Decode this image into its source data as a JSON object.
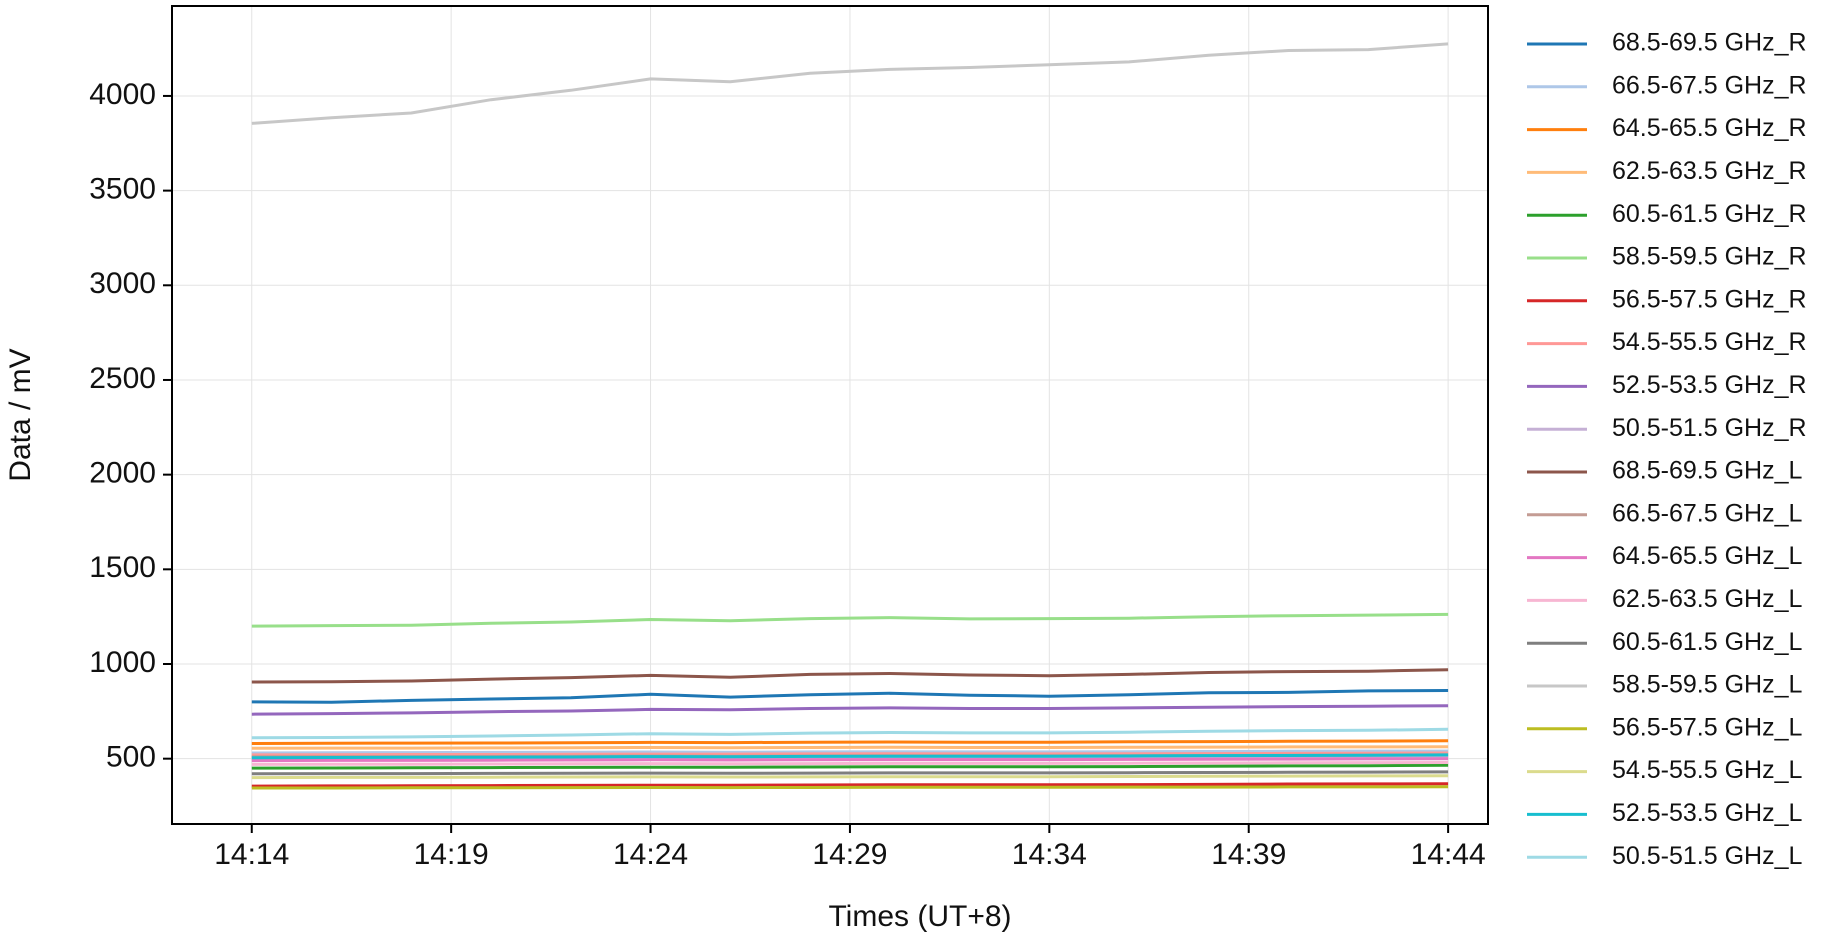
{
  "chart_data": {
    "type": "line",
    "xlabel": "Times (UT+8)",
    "ylabel": "Data / mV",
    "x": [
      "14:14",
      "14:16",
      "14:18",
      "14:20",
      "14:22",
      "14:24",
      "14:26",
      "14:28",
      "14:30",
      "14:32",
      "14:34",
      "14:36",
      "14:38",
      "14:40",
      "14:42",
      "14:44"
    ],
    "xlim": [
      "14:12",
      "14:45"
    ],
    "xticks": [
      "14:14",
      "14:19",
      "14:24",
      "14:29",
      "14:34",
      "14:39",
      "14:44"
    ],
    "ylim": [
      155,
      4475
    ],
    "yticks": [
      500,
      1000,
      1500,
      2000,
      2500,
      3000,
      3500,
      4000
    ],
    "grid": true,
    "series": [
      {
        "name": "68.5-69.5 GHz_R",
        "color": "#1f77b4",
        "values": [
          800,
          798,
          808,
          815,
          822,
          840,
          825,
          838,
          845,
          835,
          830,
          838,
          848,
          850,
          858,
          860
        ]
      },
      {
        "name": "66.5-67.5 GHz_R",
        "color": "#aec7e8",
        "values": [
          530,
          531,
          532,
          533,
          534,
          535,
          534,
          536,
          537,
          536,
          536,
          537,
          538,
          539,
          540,
          540
        ]
      },
      {
        "name": "64.5-65.5 GHz_R",
        "color": "#ff7f0e",
        "values": [
          580,
          581,
          582,
          583,
          584,
          586,
          585,
          587,
          588,
          587,
          587,
          589,
          590,
          592,
          593,
          595
        ]
      },
      {
        "name": "62.5-63.5 GHz_R",
        "color": "#ffbb78",
        "values": [
          555,
          556,
          556,
          557,
          558,
          559,
          558,
          559,
          560,
          559,
          559,
          560,
          561,
          562,
          562,
          563
        ]
      },
      {
        "name": "60.5-61.5 GHz_R",
        "color": "#2ca02c",
        "values": [
          450,
          451,
          452,
          453,
          454,
          455,
          455,
          456,
          457,
          457,
          457,
          458,
          460,
          462,
          463,
          465
        ]
      },
      {
        "name": "58.5-59.5 GHz_R",
        "color": "#98df8a",
        "values": [
          1200,
          1203,
          1205,
          1215,
          1222,
          1235,
          1228,
          1240,
          1245,
          1238,
          1240,
          1242,
          1250,
          1255,
          1258,
          1262
        ]
      },
      {
        "name": "56.5-57.5 GHz_R",
        "color": "#d62728",
        "values": [
          355,
          356,
          357,
          358,
          359,
          360,
          360,
          361,
          362,
          362,
          362,
          363,
          364,
          366,
          367,
          368
        ]
      },
      {
        "name": "54.5-55.5 GHz_R",
        "color": "#ff9896",
        "values": [
          520,
          521,
          522,
          522,
          523,
          524,
          524,
          525,
          526,
          525,
          525,
          526,
          527,
          528,
          529,
          530
        ]
      },
      {
        "name": "52.5-53.5 GHz_R",
        "color": "#9467bd",
        "values": [
          735,
          738,
          742,
          748,
          752,
          760,
          758,
          765,
          768,
          765,
          765,
          768,
          772,
          775,
          777,
          780
        ]
      },
      {
        "name": "50.5-51.5 GHz_R",
        "color": "#c5b0d5",
        "values": [
          500,
          501,
          501,
          502,
          503,
          504,
          503,
          504,
          505,
          505,
          505,
          506,
          507,
          508,
          509,
          510
        ]
      },
      {
        "name": "68.5-69.5 GHz_L",
        "color": "#8c564b",
        "values": [
          905,
          906,
          910,
          920,
          928,
          940,
          930,
          945,
          950,
          942,
          938,
          945,
          955,
          960,
          962,
          970
        ]
      },
      {
        "name": "66.5-67.5 GHz_L",
        "color": "#c49c94",
        "values": [
          510,
          511,
          511,
          512,
          513,
          514,
          513,
          514,
          515,
          515,
          515,
          516,
          517,
          518,
          519,
          520
        ]
      },
      {
        "name": "64.5-65.5 GHz_L",
        "color": "#e377c2",
        "values": [
          490,
          491,
          491,
          492,
          493,
          494,
          493,
          494,
          495,
          495,
          495,
          496,
          497,
          498,
          499,
          500
        ]
      },
      {
        "name": "62.5-63.5 GHz_L",
        "color": "#f7b6d2",
        "values": [
          470,
          471,
          471,
          472,
          473,
          474,
          473,
          474,
          475,
          475,
          475,
          476,
          477,
          478,
          479,
          480
        ]
      },
      {
        "name": "60.5-61.5 GHz_L",
        "color": "#7f7f7f",
        "values": [
          420,
          421,
          421,
          422,
          423,
          424,
          423,
          424,
          425,
          425,
          425,
          426,
          427,
          428,
          429,
          430
        ]
      },
      {
        "name": "58.5-59.5 GHz_L",
        "color": "#c7c7c7",
        "values": [
          3855,
          3885,
          3910,
          3980,
          4030,
          4090,
          4075,
          4120,
          4140,
          4150,
          4165,
          4180,
          4215,
          4240,
          4245,
          4275
        ]
      },
      {
        "name": "56.5-57.5 GHz_L",
        "color": "#bcbd22",
        "values": [
          345,
          345,
          346,
          346,
          347,
          348,
          347,
          348,
          349,
          349,
          349,
          350,
          350,
          351,
          351,
          352
        ]
      },
      {
        "name": "54.5-55.5 GHz_L",
        "color": "#dbdb8d",
        "values": [
          400,
          401,
          401,
          402,
          403,
          404,
          403,
          404,
          405,
          405,
          405,
          406,
          407,
          408,
          409,
          410
        ]
      },
      {
        "name": "52.5-53.5 GHz_L",
        "color": "#17becf",
        "values": [
          505,
          506,
          507,
          508,
          509,
          511,
          510,
          512,
          513,
          513,
          513,
          514,
          516,
          517,
          518,
          520
        ]
      },
      {
        "name": "50.5-51.5 GHz_L",
        "color": "#9edae5",
        "values": [
          610,
          612,
          615,
          620,
          625,
          632,
          628,
          635,
          638,
          636,
          636,
          640,
          645,
          648,
          650,
          655
        ]
      }
    ]
  }
}
